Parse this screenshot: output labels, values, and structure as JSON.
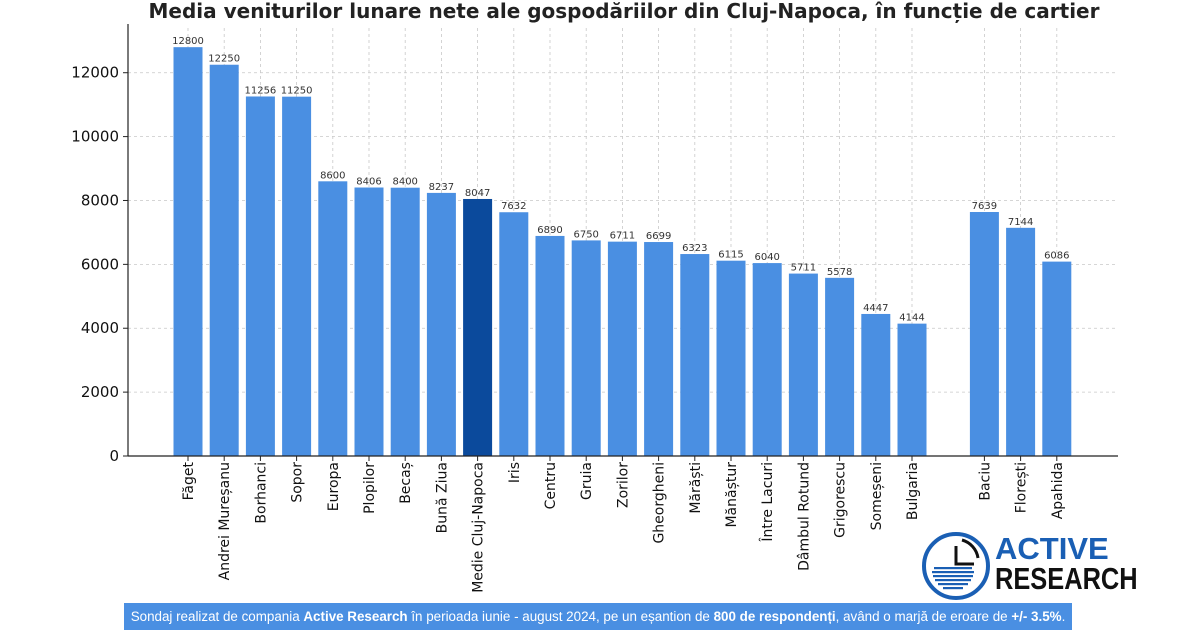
{
  "chart_data": {
    "type": "bar",
    "title": "Media veniturilor lunare nete ale gospodăriilor din Cluj-Napoca, în funcție de cartier",
    "categories": [
      "Făget",
      "Andrei Mureșanu",
      "Borhanci",
      "Sopor",
      "Europa",
      "Plopilor",
      "Becaș",
      "Bună Ziua",
      "Medie Cluj-Napoca",
      "Iris",
      "Centru",
      "Gruia",
      "Zorilor",
      "Gheorgheni",
      "Mărăști",
      "Mănăștur",
      "Între Lacuri",
      "Dâmbul Rotund",
      "Grigorescu",
      "Someșeni",
      "Bulgaria",
      "Baciu",
      "Florești",
      "Apahida"
    ],
    "values": [
      12800,
      12250,
      11256,
      11250,
      8600,
      8406,
      8400,
      8237,
      8047,
      7632,
      6890,
      6750,
      6711,
      6699,
      6323,
      6115,
      6040,
      5711,
      5578,
      4447,
      4144,
      7639,
      7144,
      6086
    ],
    "highlight_category": "Medie Cluj-Napoca",
    "yticks": [
      0,
      2000,
      4000,
      6000,
      8000,
      10000,
      12000
    ],
    "ylim": [
      0,
      13400
    ],
    "grid": true,
    "colors": {
      "bar": "#4a8fe2",
      "highlight": "#0b4a9c",
      "grid": "#c8c8c8"
    }
  },
  "logo": {
    "line1": "ACTIVE",
    "line2": "RESEARCH"
  },
  "footer": {
    "p1": "Sondaj realizat de compania ",
    "b1": "Active Research",
    "p2": " în perioada iunie - august 2024, pe un eșantion de ",
    "b2": "800 de respondenți",
    "p3": ", având o marjă de eroare de ",
    "b3": "+/- 3.5%",
    "p4": "."
  }
}
